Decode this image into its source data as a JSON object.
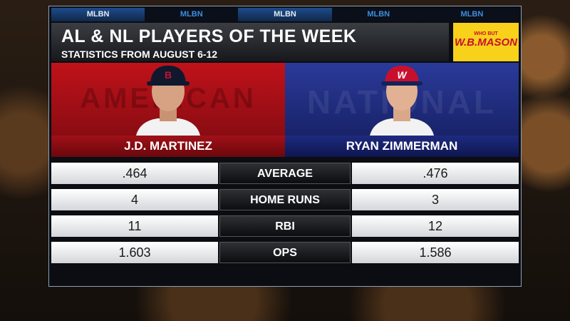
{
  "tabs": [
    "MLBN",
    "MLBN",
    "MLBN",
    "MLBN",
    "MLBN"
  ],
  "header": {
    "title": "AL & NL PLAYERS OF THE WEEK",
    "subtitle": "STATISTICS FROM AUGUST 6-12"
  },
  "sponsor": {
    "tagline": "WHO BUT",
    "name": "W.B.MASON"
  },
  "players": [
    {
      "league": "AMERICAN",
      "name": "J.D. MARTINEZ"
    },
    {
      "league": "NATIONAL",
      "name": "RYAN ZIMMERMAN"
    }
  ],
  "table": {
    "rows": [
      [
        ".464",
        "AVERAGE",
        ".476"
      ],
      [
        "4",
        "HOME RUNS",
        "3"
      ],
      [
        "11",
        "RBI",
        "12"
      ],
      [
        "1.603",
        "OPS",
        "1.586"
      ]
    ]
  }
}
